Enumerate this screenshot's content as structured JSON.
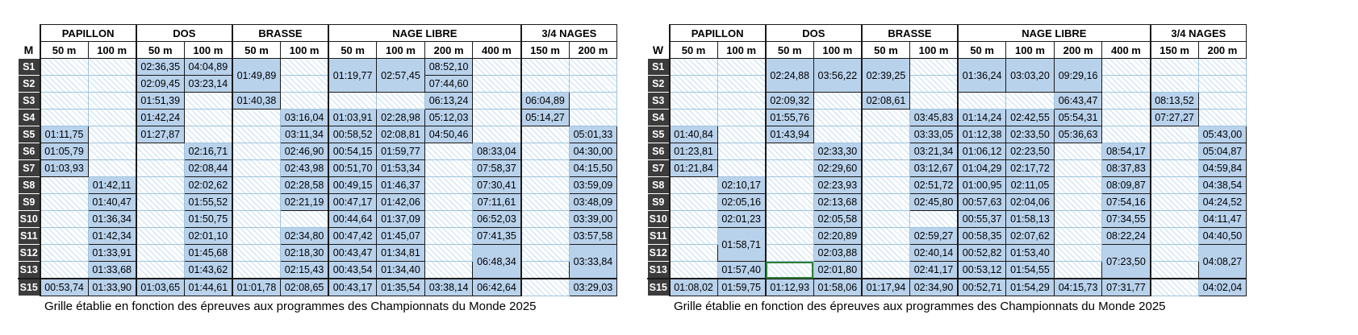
{
  "stroke_groups": [
    {
      "name": "PAPILLON",
      "cols": [
        "50 m",
        "100 m"
      ]
    },
    {
      "name": "DOS",
      "cols": [
        "50 m",
        "100 m"
      ]
    },
    {
      "name": "BRASSE",
      "cols": [
        "50 m",
        "100 m"
      ]
    },
    {
      "name": "NAGE LIBRE",
      "cols": [
        "50 m",
        "100 m",
        "200 m",
        "400 m"
      ]
    },
    {
      "name": "3/4 NAGES",
      "cols": [
        "150 m",
        "200 m"
      ]
    }
  ],
  "levels": [
    "S1",
    "S2",
    "S3",
    "S4",
    "S5",
    "S6",
    "S7",
    "S8",
    "S9",
    "S10",
    "S11",
    "S12",
    "S13",
    "S15"
  ],
  "tables": [
    {
      "gender": "M",
      "caption": "Grille établie en fonction des épreuves aux programmes des Championnats du Monde 2025",
      "rows": [
        [
          {
            "v": ""
          },
          {
            "v": ""
          },
          {
            "v": "02:36,35"
          },
          {
            "v": "04:04,89"
          },
          {
            "v": "01:49,89",
            "rs": 2
          },
          {
            "v": ""
          },
          {
            "v": "01:19,77",
            "rs": 2
          },
          {
            "v": "02:57,45",
            "rs": 2
          },
          {
            "v": "08:52,10"
          },
          {
            "v": ""
          },
          {
            "v": ""
          },
          {
            "v": ""
          }
        ],
        [
          {
            "v": ""
          },
          {
            "v": ""
          },
          {
            "v": "02:09,45"
          },
          {
            "v": "03:23,14"
          },
          {
            "v": ""
          },
          {
            "v": "07:44,60"
          },
          {
            "v": ""
          },
          {
            "v": ""
          },
          {
            "v": ""
          }
        ],
        [
          {
            "v": ""
          },
          {
            "v": ""
          },
          {
            "v": "01:51,39"
          },
          {
            "v": ""
          },
          {
            "v": "01:40,38"
          },
          {
            "v": ""
          },
          {
            "v": ""
          },
          {
            "v": ""
          },
          {
            "v": "06:13,24"
          },
          {
            "v": ""
          },
          {
            "v": "06:04,89"
          },
          {
            "v": ""
          }
        ],
        [
          {
            "v": ""
          },
          {
            "v": ""
          },
          {
            "v": "01:42,24"
          },
          {
            "v": ""
          },
          {
            "v": ""
          },
          {
            "v": "03:16,04"
          },
          {
            "v": "01:03,91"
          },
          {
            "v": "02:28,98"
          },
          {
            "v": "05:12,03"
          },
          {
            "v": ""
          },
          {
            "v": "05:14,27"
          },
          {
            "v": ""
          }
        ],
        [
          {
            "v": "01:11,75"
          },
          {
            "v": ""
          },
          {
            "v": "01:27,87"
          },
          {
            "v": ""
          },
          {
            "v": ""
          },
          {
            "v": "03:11,34"
          },
          {
            "v": "00:58,52"
          },
          {
            "v": "02:08,81"
          },
          {
            "v": "04:50,46"
          },
          {
            "v": ""
          },
          {
            "v": ""
          },
          {
            "v": "05:01,33"
          }
        ],
        [
          {
            "v": "01:05,79"
          },
          {
            "v": ""
          },
          {
            "v": ""
          },
          {
            "v": "02:16,71"
          },
          {
            "v": ""
          },
          {
            "v": "02:46,90"
          },
          {
            "v": "00:54,15"
          },
          {
            "v": "01:59,77"
          },
          {
            "v": ""
          },
          {
            "v": "08:33,04"
          },
          {
            "v": ""
          },
          {
            "v": "04:30,00"
          }
        ],
        [
          {
            "v": "01:03,93"
          },
          {
            "v": ""
          },
          {
            "v": ""
          },
          {
            "v": "02:08,44"
          },
          {
            "v": ""
          },
          {
            "v": "02:43,98"
          },
          {
            "v": "00:51,70"
          },
          {
            "v": "01:53,34"
          },
          {
            "v": ""
          },
          {
            "v": "07:58,37"
          },
          {
            "v": ""
          },
          {
            "v": "04:15,50"
          }
        ],
        [
          {
            "v": ""
          },
          {
            "v": "01:42,11"
          },
          {
            "v": ""
          },
          {
            "v": "02:02,62"
          },
          {
            "v": ""
          },
          {
            "v": "02:28,58"
          },
          {
            "v": "00:49,15"
          },
          {
            "v": "01:46,37"
          },
          {
            "v": ""
          },
          {
            "v": "07:30,41"
          },
          {
            "v": ""
          },
          {
            "v": "03:59,09"
          }
        ],
        [
          {
            "v": ""
          },
          {
            "v": "01:40,47"
          },
          {
            "v": ""
          },
          {
            "v": "01:55,52"
          },
          {
            "v": ""
          },
          {
            "v": "02:21,19"
          },
          {
            "v": "00:47,17"
          },
          {
            "v": "01:42,06"
          },
          {
            "v": ""
          },
          {
            "v": "07:11,61"
          },
          {
            "v": ""
          },
          {
            "v": "03:48,09"
          }
        ],
        [
          {
            "v": ""
          },
          {
            "v": "01:36,34"
          },
          {
            "v": ""
          },
          {
            "v": "01:50,75"
          },
          {
            "v": ""
          },
          {
            "v": ""
          },
          {
            "v": "00:44,64"
          },
          {
            "v": "01:37,09"
          },
          {
            "v": ""
          },
          {
            "v": "06:52,03"
          },
          {
            "v": ""
          },
          {
            "v": "03:39,00"
          }
        ],
        [
          {
            "v": ""
          },
          {
            "v": "01:42,34"
          },
          {
            "v": ""
          },
          {
            "v": "02:01,10"
          },
          {
            "v": ""
          },
          {
            "v": "02:34,80"
          },
          {
            "v": "00:47,42"
          },
          {
            "v": "01:45,07"
          },
          {
            "v": ""
          },
          {
            "v": "07:41,35"
          },
          {
            "v": ""
          },
          {
            "v": "03:57,58"
          }
        ],
        [
          {
            "v": ""
          },
          {
            "v": "01:33,91"
          },
          {
            "v": ""
          },
          {
            "v": "01:45,68"
          },
          {
            "v": ""
          },
          {
            "v": "02:18,30"
          },
          {
            "v": "00:43,47"
          },
          {
            "v": "01:34,81"
          },
          {
            "v": ""
          },
          {
            "v": "06:48,34",
            "rs": 2
          },
          {
            "v": ""
          },
          {
            "v": "03:33,84",
            "rs": 2
          }
        ],
        [
          {
            "v": ""
          },
          {
            "v": "01:33,68"
          },
          {
            "v": ""
          },
          {
            "v": "01:43,62"
          },
          {
            "v": ""
          },
          {
            "v": "02:15,43"
          },
          {
            "v": "00:43,54"
          },
          {
            "v": "01:34,40"
          },
          {
            "v": ""
          },
          {
            "v": ""
          }
        ],
        [
          {
            "v": "00:53,74"
          },
          {
            "v": "01:33,90"
          },
          {
            "v": "01:03,65"
          },
          {
            "v": "01:44,61"
          },
          {
            "v": "01:01,78"
          },
          {
            "v": "02:08,65"
          },
          {
            "v": "00:43,17"
          },
          {
            "v": "01:35,54"
          },
          {
            "v": "03:38,14"
          },
          {
            "v": "06:42,64"
          },
          {
            "v": ""
          },
          {
            "v": "03:29,03"
          }
        ]
      ]
    },
    {
      "gender": "W",
      "caption": "Grille établie en fonction des épreuves aux programmes des Championnats du Monde 2025",
      "rows": [
        [
          {
            "v": ""
          },
          {
            "v": ""
          },
          {
            "v": "02:24,88",
            "rs": 2
          },
          {
            "v": "03:56,22",
            "rs": 2
          },
          {
            "v": "02:39,25",
            "rs": 2
          },
          {
            "v": ""
          },
          {
            "v": "01:36,24",
            "rs": 2
          },
          {
            "v": "03:03,20",
            "rs": 2
          },
          {
            "v": "09:29,16",
            "rs": 2
          },
          {
            "v": ""
          },
          {
            "v": ""
          },
          {
            "v": ""
          }
        ],
        [
          {
            "v": ""
          },
          {
            "v": ""
          },
          {
            "v": ""
          },
          {
            "v": ""
          },
          {
            "v": ""
          },
          {
            "v": ""
          }
        ],
        [
          {
            "v": ""
          },
          {
            "v": ""
          },
          {
            "v": "02:09,32"
          },
          {
            "v": ""
          },
          {
            "v": "02:08,61"
          },
          {
            "v": ""
          },
          {
            "v": ""
          },
          {
            "v": ""
          },
          {
            "v": "06:43,47"
          },
          {
            "v": ""
          },
          {
            "v": "08:13,52"
          },
          {
            "v": ""
          }
        ],
        [
          {
            "v": ""
          },
          {
            "v": ""
          },
          {
            "v": "01:55,76"
          },
          {
            "v": ""
          },
          {
            "v": ""
          },
          {
            "v": "03:45,83"
          },
          {
            "v": "01:14,24"
          },
          {
            "v": "02:42,55"
          },
          {
            "v": "05:54,31"
          },
          {
            "v": ""
          },
          {
            "v": "07:27,27"
          },
          {
            "v": ""
          }
        ],
        [
          {
            "v": "01:40,84"
          },
          {
            "v": ""
          },
          {
            "v": "01:43,94"
          },
          {
            "v": ""
          },
          {
            "v": ""
          },
          {
            "v": "03:33,05"
          },
          {
            "v": "01:12,38"
          },
          {
            "v": "02:33,50"
          },
          {
            "v": "05:36,63"
          },
          {
            "v": ""
          },
          {
            "v": ""
          },
          {
            "v": "05:43,00"
          }
        ],
        [
          {
            "v": "01:23,81"
          },
          {
            "v": ""
          },
          {
            "v": ""
          },
          {
            "v": "02:33,30"
          },
          {
            "v": ""
          },
          {
            "v": "03:21,34"
          },
          {
            "v": "01:06,12"
          },
          {
            "v": "02:23,50"
          },
          {
            "v": ""
          },
          {
            "v": "08:54,17"
          },
          {
            "v": ""
          },
          {
            "v": "05:04,87"
          }
        ],
        [
          {
            "v": "01:21,84"
          },
          {
            "v": ""
          },
          {
            "v": ""
          },
          {
            "v": "02:29,60"
          },
          {
            "v": ""
          },
          {
            "v": "03:12,67"
          },
          {
            "v": "01:04,29"
          },
          {
            "v": "02:17,72"
          },
          {
            "v": ""
          },
          {
            "v": "08:37,83"
          },
          {
            "v": ""
          },
          {
            "v": "04:59,84"
          }
        ],
        [
          {
            "v": ""
          },
          {
            "v": "02:10,17"
          },
          {
            "v": ""
          },
          {
            "v": "02:23,93"
          },
          {
            "v": ""
          },
          {
            "v": "02:51,72"
          },
          {
            "v": "01:00,95"
          },
          {
            "v": "02:11,05"
          },
          {
            "v": ""
          },
          {
            "v": "08:09,87"
          },
          {
            "v": ""
          },
          {
            "v": "04:38,54"
          }
        ],
        [
          {
            "v": ""
          },
          {
            "v": "02:05,16"
          },
          {
            "v": ""
          },
          {
            "v": "02:13,68"
          },
          {
            "v": ""
          },
          {
            "v": "02:45,80"
          },
          {
            "v": "00:57,63"
          },
          {
            "v": "02:04,06"
          },
          {
            "v": ""
          },
          {
            "v": "07:54,16"
          },
          {
            "v": ""
          },
          {
            "v": "04:24,52"
          }
        ],
        [
          {
            "v": ""
          },
          {
            "v": "02:01,23"
          },
          {
            "v": ""
          },
          {
            "v": "02:05,58"
          },
          {
            "v": ""
          },
          {
            "v": ""
          },
          {
            "v": "00:55,37"
          },
          {
            "v": "01:58,13"
          },
          {
            "v": ""
          },
          {
            "v": "07:34,55"
          },
          {
            "v": ""
          },
          {
            "v": "04:11,47"
          }
        ],
        [
          {
            "v": ""
          },
          {
            "v": "01:58,71",
            "rs": 2
          },
          {
            "v": ""
          },
          {
            "v": "02:20,89"
          },
          {
            "v": ""
          },
          {
            "v": "02:59,27"
          },
          {
            "v": "00:58,35"
          },
          {
            "v": "02:07,62"
          },
          {
            "v": ""
          },
          {
            "v": "08:22,24"
          },
          {
            "v": ""
          },
          {
            "v": "04:40,50"
          }
        ],
        [
          {
            "v": ""
          },
          {
            "v": ""
          },
          {
            "v": "02:03,88"
          },
          {
            "v": ""
          },
          {
            "v": "02:40,14"
          },
          {
            "v": "00:52,82"
          },
          {
            "v": "01:53,40"
          },
          {
            "v": ""
          },
          {
            "v": "07:23,50",
            "rs": 2
          },
          {
            "v": ""
          },
          {
            "v": "04:08,27",
            "rs": 2
          }
        ],
        [
          {
            "v": ""
          },
          {
            "v": "01:57,40"
          },
          {
            "v": "",
            "sel": true
          },
          {
            "v": "02:01,80"
          },
          {
            "v": ""
          },
          {
            "v": "02:41,17"
          },
          {
            "v": "00:53,12"
          },
          {
            "v": "01:54,55"
          },
          {
            "v": ""
          },
          {
            "v": ""
          }
        ],
        [
          {
            "v": "01:08,02"
          },
          {
            "v": "01:59,75"
          },
          {
            "v": "01:12,93"
          },
          {
            "v": "01:58,06"
          },
          {
            "v": "01:17,94"
          },
          {
            "v": "02:34,90"
          },
          {
            "v": "00:52,71"
          },
          {
            "v": "01:54,29"
          },
          {
            "v": "04:15,73"
          },
          {
            "v": "07:31,77"
          },
          {
            "v": ""
          },
          {
            "v": "04:02,04"
          }
        ]
      ]
    }
  ]
}
